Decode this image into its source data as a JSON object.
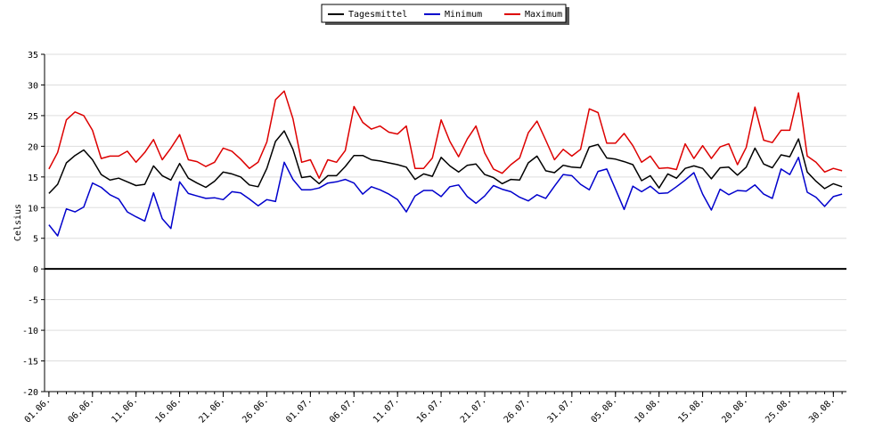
{
  "chart_data": {
    "type": "line",
    "title": "",
    "xlabel": "",
    "ylabel": "Celsius",
    "ylim": [
      -20,
      35
    ],
    "yticks": [
      -20,
      -15,
      -10,
      -5,
      0,
      5,
      10,
      15,
      20,
      25,
      30,
      35
    ],
    "grid": true,
    "legend_position": "top-center",
    "xtick_labels": [
      "01.06.",
      "06.06.",
      "11.06.",
      "16.06.",
      "21.06.",
      "26.06.",
      "01.07.",
      "06.07.",
      "11.07.",
      "16.07.",
      "21.07.",
      "26.07.",
      "31.07.",
      "05.08.",
      "10.08.",
      "15.08.",
      "20.08.",
      "25.08.",
      "30.08."
    ],
    "series": [
      {
        "name": "Tagesmittel",
        "color": "#000000",
        "values": [
          12.3,
          13.8,
          17.3,
          18.5,
          19.4,
          17.8,
          15.4,
          14.5,
          14.8,
          14.2,
          13.6,
          13.8,
          16.8,
          15.2,
          14.5,
          17.2,
          14.8,
          14.0,
          13.3,
          14.3,
          15.8,
          15.5,
          15.0,
          13.7,
          13.4,
          16.4,
          20.8,
          22.5,
          19.5,
          14.9,
          15.1,
          13.9,
          15.2,
          15.2,
          16.7,
          18.5,
          18.5,
          17.8,
          17.6,
          17.3,
          17.0,
          16.6,
          14.6,
          15.5,
          15.1,
          18.2,
          16.8,
          15.8,
          16.9,
          17.1,
          15.4,
          14.9,
          13.9,
          14.6,
          14.5,
          17.3,
          18.4,
          16.0,
          15.7,
          16.9,
          16.6,
          16.5,
          19.9,
          20.3,
          18.1,
          17.9,
          17.5,
          17.0,
          14.4,
          15.2,
          13.2,
          15.5,
          14.8,
          16.4,
          16.8,
          16.4,
          14.7,
          16.5,
          16.6,
          15.3,
          16.6,
          19.7,
          17.1,
          16.5,
          18.6,
          18.3,
          21.2,
          15.8,
          14.3,
          13.1,
          13.9,
          13.4
        ]
      },
      {
        "name": "Minimum",
        "color": "#0000cc",
        "values": [
          7.2,
          5.4,
          9.8,
          9.3,
          10.1,
          14.0,
          13.3,
          12.1,
          11.4,
          9.3,
          8.5,
          7.8,
          12.4,
          8.2,
          6.6,
          14.2,
          12.3,
          11.9,
          11.5,
          11.6,
          11.3,
          12.6,
          12.4,
          11.4,
          10.3,
          11.3,
          11.0,
          17.4,
          14.6,
          12.9,
          12.9,
          13.2,
          14.0,
          14.2,
          14.6,
          14.0,
          12.2,
          13.4,
          12.9,
          12.2,
          11.3,
          9.3,
          11.9,
          12.8,
          12.8,
          11.8,
          13.4,
          13.7,
          11.8,
          10.7,
          11.9,
          13.6,
          13.0,
          12.6,
          11.7,
          11.1,
          12.1,
          11.5,
          13.5,
          15.4,
          15.2,
          13.8,
          12.9,
          15.9,
          16.3,
          13.0,
          9.7,
          13.5,
          12.6,
          13.5,
          12.3,
          12.4,
          13.4,
          14.5,
          15.7,
          12.2,
          9.6,
          13.0,
          12.1,
          12.8,
          12.7,
          13.7,
          12.2,
          11.5,
          16.3,
          15.4,
          18.2,
          12.5,
          11.7,
          10.2,
          11.8,
          12.2
        ]
      },
      {
        "name": "Maximum",
        "color": "#dd0000",
        "values": [
          16.3,
          19.0,
          24.3,
          25.6,
          25.0,
          22.6,
          18.0,
          18.4,
          18.4,
          19.2,
          17.4,
          19.0,
          21.1,
          17.8,
          19.7,
          21.9,
          17.8,
          17.5,
          16.7,
          17.4,
          19.7,
          19.2,
          17.9,
          16.4,
          17.4,
          20.7,
          27.6,
          29.0,
          24.5,
          17.4,
          17.8,
          14.8,
          17.8,
          17.4,
          19.3,
          26.5,
          23.9,
          22.8,
          23.3,
          22.3,
          22.0,
          23.3,
          16.4,
          16.4,
          18.1,
          24.3,
          20.8,
          18.3,
          21.2,
          23.3,
          18.9,
          16.3,
          15.6,
          17.0,
          18.1,
          22.2,
          24.1,
          21.0,
          17.8,
          19.5,
          18.4,
          19.5,
          26.1,
          25.5,
          20.5,
          20.5,
          22.1,
          20.1,
          17.4,
          18.4,
          16.4,
          16.5,
          16.2,
          20.4,
          18.0,
          20.1,
          18.0,
          19.9,
          20.4,
          17.0,
          19.8,
          26.4,
          21.0,
          20.6,
          22.6,
          22.6,
          28.7,
          18.4,
          17.4,
          15.8,
          16.4,
          16.0
        ]
      }
    ]
  }
}
